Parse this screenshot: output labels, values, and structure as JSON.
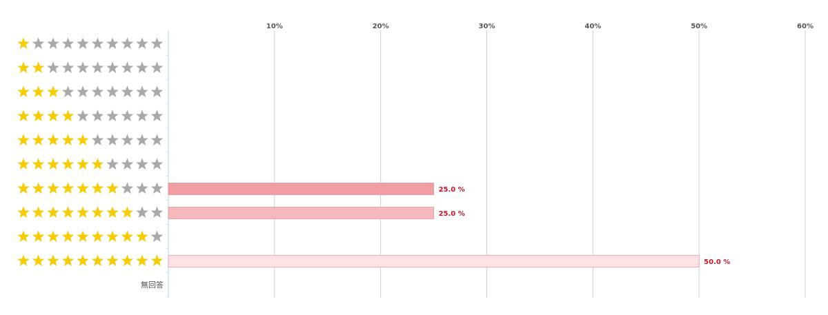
{
  "chart_data": {
    "type": "bar",
    "orientation": "horizontal",
    "categories": [
      {
        "rating": 1,
        "max": 10,
        "label": ""
      },
      {
        "rating": 2,
        "max": 10,
        "label": ""
      },
      {
        "rating": 3,
        "max": 10,
        "label": ""
      },
      {
        "rating": 4,
        "max": 10,
        "label": ""
      },
      {
        "rating": 5,
        "max": 10,
        "label": ""
      },
      {
        "rating": 6,
        "max": 10,
        "label": ""
      },
      {
        "rating": 7,
        "max": 10,
        "label": ""
      },
      {
        "rating": 8,
        "max": 10,
        "label": ""
      },
      {
        "rating": 9,
        "max": 10,
        "label": ""
      },
      {
        "rating": 10,
        "max": 10,
        "label": ""
      },
      {
        "rating": 0,
        "max": 0,
        "label": "無回答"
      }
    ],
    "values": [
      null,
      null,
      null,
      null,
      null,
      null,
      25.0,
      25.0,
      null,
      50.0,
      null
    ],
    "value_labels": [
      "",
      "",
      "",
      "",
      "",
      "",
      "25.0 %",
      "25.0 %",
      "",
      "50.0 %",
      ""
    ],
    "xlim": [
      0,
      60
    ],
    "ticks": [
      {
        "value": 10,
        "label": "10%"
      },
      {
        "value": 20,
        "label": "20%"
      },
      {
        "value": 30,
        "label": "30%"
      },
      {
        "value": 40,
        "label": "40%"
      },
      {
        "value": 50,
        "label": "50%"
      },
      {
        "value": 60,
        "label": "60%"
      }
    ],
    "grid": true,
    "colors": {
      "star_filled": "#f5cc0a",
      "star_empty": "#a9a9a9",
      "bar_rating_7": "#f09ea3",
      "bar_rating_8": "#f5b8bb",
      "bar_rating_10": "#fce4e5",
      "bar_border": "#e87d84",
      "value_label": "#c0152b",
      "grid": "#cfcfcf",
      "axis": "#b9dbe3"
    },
    "icons": {
      "filled": "star-filled-icon",
      "empty": "star-empty-icon"
    }
  }
}
